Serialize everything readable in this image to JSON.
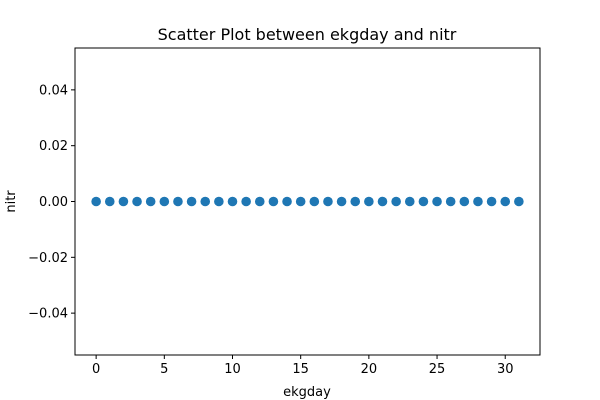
{
  "chart_data": {
    "type": "scatter",
    "title": "Scatter Plot between ekgday and nitr",
    "xlabel": "ekgday",
    "ylabel": "nitr",
    "xlim": [
      -1.55,
      32.55
    ],
    "ylim": [
      -0.055,
      0.055
    ],
    "xticks": [
      0,
      5,
      10,
      15,
      20,
      25,
      30
    ],
    "yticks": [
      -0.04,
      -0.02,
      0.0,
      0.02,
      0.04
    ],
    "xtick_labels": [
      "0",
      "5",
      "10",
      "15",
      "20",
      "25",
      "30"
    ],
    "ytick_labels": [
      "−0.04",
      "−0.02",
      "0.00",
      "0.02",
      "0.04"
    ],
    "grid": false,
    "marker_color": "#1f77b4",
    "points": {
      "x": [
        0,
        1,
        2,
        3,
        4,
        5,
        6,
        7,
        8,
        9,
        10,
        11,
        12,
        13,
        14,
        15,
        16,
        17,
        18,
        19,
        20,
        21,
        22,
        23,
        24,
        25,
        26,
        27,
        28,
        29,
        30,
        31
      ],
      "y": [
        0,
        0,
        0,
        0,
        0,
        0,
        0,
        0,
        0,
        0,
        0,
        0,
        0,
        0,
        0,
        0,
        0,
        0,
        0,
        0,
        0,
        0,
        0,
        0,
        0,
        0,
        0,
        0,
        0,
        0,
        0,
        0
      ]
    }
  }
}
